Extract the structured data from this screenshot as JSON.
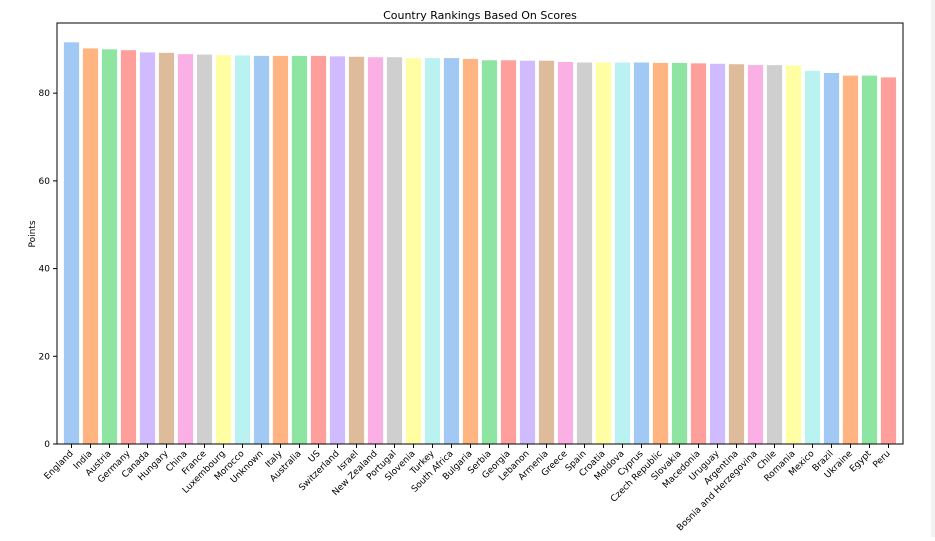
{
  "chart_data": {
    "type": "bar",
    "title": "Country Rankings Based On Scores",
    "xlabel": "",
    "ylabel": "Points",
    "ylim": [
      0,
      96
    ],
    "yticks": [
      0,
      20,
      40,
      60,
      80
    ],
    "grid": false,
    "legend": "none",
    "categories": [
      "England",
      "India",
      "Austria",
      "Germany",
      "Canada",
      "Hungary",
      "China",
      "France",
      "Luxembourg",
      "Morocco",
      "Unknown",
      "Italy",
      "Australia",
      "US",
      "Switzerland",
      "Israel",
      "New Zealand",
      "Portugal",
      "Slovenia",
      "Turkey",
      "South Africa",
      "Bulgaria",
      "Serbia",
      "Georgia",
      "Lebanon",
      "Armenia",
      "Greece",
      "Spain",
      "Croatia",
      "Moldova",
      "Cyprus",
      "Czech Republic",
      "Slovakia",
      "Macedonia",
      "Uruguay",
      "Argentina",
      "Bosnia and Herzegovina",
      "Chile",
      "Romania",
      "Mexico",
      "Brazil",
      "Ukraine",
      "Egypt",
      "Peru"
    ],
    "values": [
      91.6,
      90.2,
      90.0,
      89.8,
      89.3,
      89.2,
      88.9,
      88.8,
      88.7,
      88.6,
      88.5,
      88.5,
      88.5,
      88.5,
      88.4,
      88.3,
      88.2,
      88.2,
      88.0,
      88.0,
      88.0,
      87.8,
      87.5,
      87.5,
      87.4,
      87.4,
      87.1,
      87.0,
      87.0,
      87.0,
      87.0,
      86.9,
      86.9,
      86.8,
      86.7,
      86.6,
      86.4,
      86.4,
      86.3,
      85.1,
      84.6,
      84.0,
      84.0,
      83.6
    ],
    "palette": [
      "#a1c9f4",
      "#ffb482",
      "#8de5a1",
      "#ff9f9b",
      "#d0bbff",
      "#debb9b",
      "#fab0e4",
      "#cfcfcf",
      "#fffea3",
      "#b9f2f0"
    ]
  }
}
